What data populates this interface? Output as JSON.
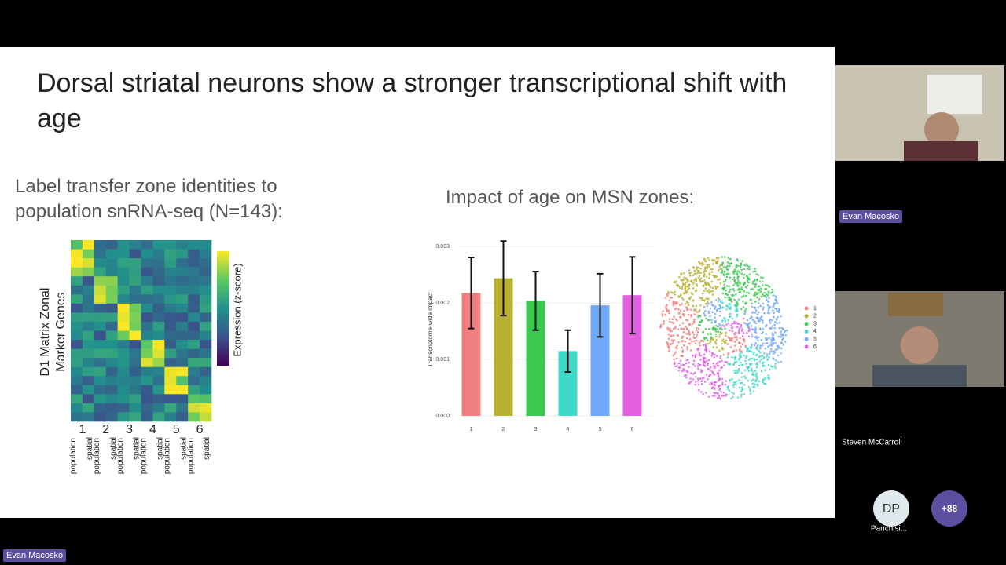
{
  "slide": {
    "title": "Dorsal striatal neurons show a stronger transcriptional shift with age",
    "left_heading": "Label transfer zone identities to population snRNA-seq (N=143):",
    "heatmap": {
      "y_label": [
        "D1 Matrix Zonal",
        "Marker Genes"
      ],
      "colorbar_label": "Expression (z-score)",
      "groups": [
        "1",
        "2",
        "3",
        "4",
        "5",
        "6"
      ],
      "columns": [
        "population",
        "spatial",
        "population",
        "spatial",
        "population",
        "spatial",
        "population",
        "spatial",
        "population",
        "spatial",
        "population",
        "spatial"
      ]
    },
    "right_heading": "Impact of age on MSN zones:",
    "bar_chart": {
      "type": "bar",
      "y_label": "Transcriptome-wide impact",
      "categories": [
        "1",
        "2",
        "3",
        "4",
        "5",
        "6"
      ],
      "values": [
        0.00218,
        0.00244,
        0.00204,
        0.00115,
        0.00196,
        0.00214
      ],
      "errors": [
        0.00063,
        0.00066,
        0.00052,
        0.00037,
        0.00056,
        0.00068
      ],
      "colors": [
        "#f08080",
        "#b8b030",
        "#3cc850",
        "#40d8c8",
        "#70a8f8",
        "#e060e0"
      ],
      "ylim": [
        0,
        0.0032
      ],
      "yticks": [
        {
          "value": 0,
          "label": "0.000"
        },
        {
          "value": 0.001,
          "label": "0.001"
        },
        {
          "value": 0.002,
          "label": "0.002"
        },
        {
          "value": 0.003,
          "label": "0.003"
        }
      ]
    },
    "umap": {
      "legend": [
        "1",
        "2",
        "3",
        "4",
        "5",
        "6"
      ]
    }
  },
  "participants": [
    "Evan Macosko",
    "Steven McCarroll"
  ],
  "tiles": [
    {
      "initials": "DP",
      "name": "Panchisi..."
    },
    {
      "label": "+88"
    }
  ],
  "active_speaker": "Evan Macosko"
}
